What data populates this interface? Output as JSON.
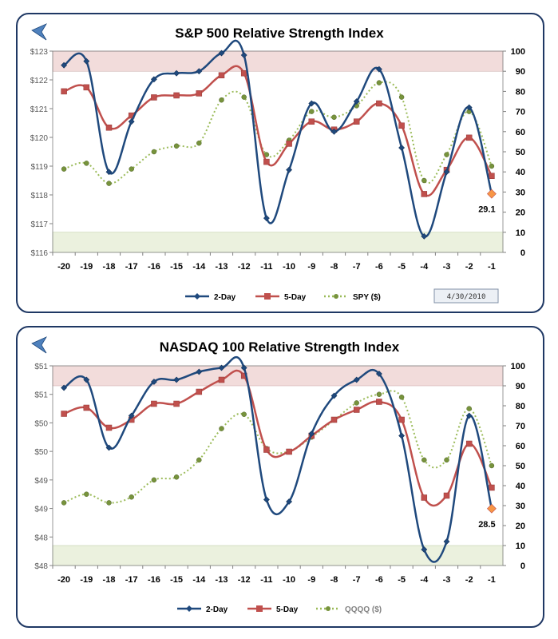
{
  "colors": {
    "two_day": "#1f497d",
    "five_day": "#c0504d",
    "etf": "#9bbb59",
    "overbought": "#f2dcdb",
    "oversold": "#ebf1de",
    "frame": "#1f3864",
    "last_marker": "#f79646"
  },
  "icons": {
    "back": "back-arrow-icon"
  },
  "chart_data": [
    {
      "type": "line",
      "title": "S&P 500 Relative Strength Index",
      "categories": [
        "-20",
        "-19",
        "-18",
        "-17",
        "-16",
        "-15",
        "-14",
        "-13",
        "-12",
        "-11",
        "-10",
        "-9",
        "-8",
        "-7",
        "-6",
        "-5",
        "-4",
        "-3",
        "-2",
        "-1"
      ],
      "left_axis": {
        "ylim": [
          116,
          123
        ],
        "ticks": [
          "$116",
          "$117",
          "$118",
          "$119",
          "$120",
          "$121",
          "$122",
          "$123"
        ]
      },
      "right_axis": {
        "ylim": [
          0,
          100
        ],
        "ticks": [
          "0",
          "10",
          "20",
          "30",
          "40",
          "50",
          "60",
          "70",
          "80",
          "90",
          "100"
        ]
      },
      "overbought_band": [
        90,
        100
      ],
      "oversold_band": [
        0,
        10
      ],
      "series": [
        {
          "name": "2-Day",
          "axis": "right",
          "style": "solid-smooth",
          "marker": "diamond",
          "values": [
            93,
            95,
            40,
            65,
            86,
            89,
            90,
            99,
            98,
            17,
            41,
            74,
            60,
            75,
            91,
            52,
            8,
            40,
            72,
            29.1
          ]
        },
        {
          "name": "5-Day",
          "axis": "right",
          "style": "solid-smooth",
          "marker": "square",
          "values": [
            80,
            82,
            62,
            68,
            77,
            78,
            79,
            88,
            89,
            45,
            54,
            65,
            61,
            65,
            74,
            63,
            29,
            41,
            57,
            38
          ]
        },
        {
          "name": "SPY ($)",
          "axis": "left",
          "style": "dotted",
          "marker": "circle",
          "values": [
            118.9,
            119.1,
            118.4,
            118.9,
            119.5,
            119.7,
            119.8,
            121.3,
            121.4,
            119.4,
            119.9,
            120.9,
            120.7,
            121.1,
            121.9,
            121.4,
            118.5,
            119.4,
            120.9,
            119.0
          ]
        }
      ],
      "annotation": {
        "label": "29.1",
        "category": "-1",
        "value": 29.1
      },
      "date_label": "4/30/2010"
    },
    {
      "type": "line",
      "title": "NASDAQ 100 Relative Strength Index",
      "categories": [
        "-20",
        "-19",
        "-18",
        "-17",
        "-16",
        "-15",
        "-14",
        "-13",
        "-12",
        "-11",
        "-10",
        "-9",
        "-8",
        "-7",
        "-6",
        "-5",
        "-4",
        "-3",
        "-2",
        "-1"
      ],
      "left_axis": {
        "ylim": [
          48,
          51.5
        ],
        "ticks": [
          "$48",
          "$48",
          "$49",
          "$49",
          "$50",
          "$50",
          "$51",
          "$51"
        ]
      },
      "right_axis": {
        "ylim": [
          0,
          100
        ],
        "ticks": [
          "0",
          "10",
          "20",
          "30",
          "40",
          "50",
          "60",
          "70",
          "80",
          "90",
          "100"
        ]
      },
      "overbought_band": [
        90,
        100
      ],
      "oversold_band": [
        0,
        10
      ],
      "series": [
        {
          "name": "2-Day",
          "axis": "right",
          "style": "solid-smooth",
          "marker": "diamond",
          "values": [
            89,
            93,
            59,
            75,
            92,
            93,
            97,
            99,
            99,
            33,
            32,
            66,
            85,
            93,
            96,
            65,
            8,
            12,
            75,
            28.5
          ]
        },
        {
          "name": "5-Day",
          "axis": "right",
          "style": "solid-smooth",
          "marker": "square",
          "values": [
            76,
            79,
            69,
            73,
            81,
            81,
            87,
            93,
            95,
            58,
            57,
            65,
            73,
            78,
            82,
            73,
            34,
            35,
            61,
            39
          ]
        },
        {
          "name": "QQQQ ($)",
          "axis": "left",
          "style": "dotted",
          "marker": "circle",
          "values": [
            49.1,
            49.25,
            49.1,
            49.2,
            49.5,
            49.55,
            49.85,
            50.4,
            50.65,
            50.05,
            50.0,
            50.25,
            50.55,
            50.85,
            51.0,
            50.95,
            49.85,
            49.85,
            50.75,
            49.75
          ]
        }
      ],
      "annotation": {
        "label": "28.5",
        "category": "-1",
        "value": 28.5
      },
      "date_label": ""
    }
  ]
}
